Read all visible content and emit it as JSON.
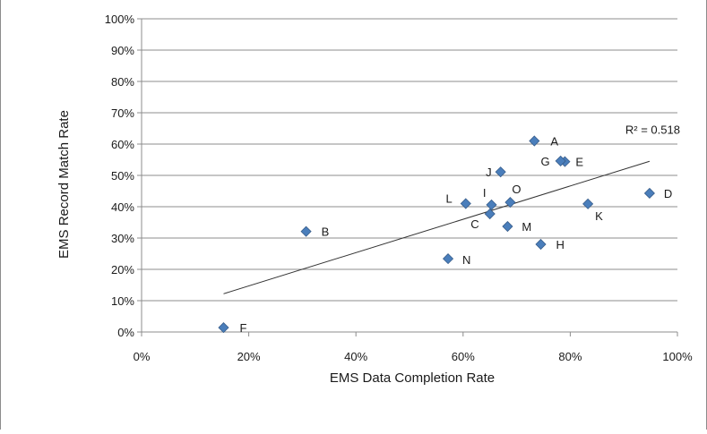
{
  "colors": {
    "marker": "#4a7ebb",
    "marker_stroke": "#385d8a",
    "gridline": "#8c8c8c",
    "axis": "#8c8c8c",
    "trendline": "#333333",
    "text": "#1a1a1a"
  },
  "chart_data": {
    "type": "scatter",
    "title": "",
    "xlabel": "EMS Data Completion Rate",
    "ylabel": "EMS Record Match Rate",
    "xlim": [
      0,
      1
    ],
    "ylim": [
      0,
      1
    ],
    "xticks": [
      "0%",
      "20%",
      "40%",
      "60%",
      "80%",
      "100%"
    ],
    "yticks": [
      "0%",
      "10%",
      "20%",
      "30%",
      "40%",
      "50%",
      "60%",
      "70%",
      "80%",
      "90%",
      "100%"
    ],
    "grid": "horizontal major gridlines",
    "legend": "none",
    "points": [
      {
        "label": "A",
        "x": 0.733,
        "y": 0.61
      },
      {
        "label": "B",
        "x": 0.307,
        "y": 0.321
      },
      {
        "label": "C",
        "x": 0.65,
        "y": 0.377
      },
      {
        "label": "D",
        "x": 0.948,
        "y": 0.443
      },
      {
        "label": "E",
        "x": 0.79,
        "y": 0.544
      },
      {
        "label": "F",
        "x": 0.153,
        "y": 0.014
      },
      {
        "label": "G",
        "x": 0.782,
        "y": 0.546
      },
      {
        "label": "H",
        "x": 0.745,
        "y": 0.28
      },
      {
        "label": "I",
        "x": 0.653,
        "y": 0.406
      },
      {
        "label": "J",
        "x": 0.67,
        "y": 0.511
      },
      {
        "label": "K",
        "x": 0.833,
        "y": 0.409
      },
      {
        "label": "L",
        "x": 0.605,
        "y": 0.41
      },
      {
        "label": "M",
        "x": 0.683,
        "y": 0.337
      },
      {
        "label": "N",
        "x": 0.572,
        "y": 0.234
      },
      {
        "label": "O",
        "x": 0.688,
        "y": 0.414
      }
    ],
    "trendline": {
      "type": "linear",
      "x": [
        0.153,
        0.948
      ],
      "y": [
        0.122,
        0.545
      ],
      "r_squared_label": "R² = 0.518"
    }
  }
}
